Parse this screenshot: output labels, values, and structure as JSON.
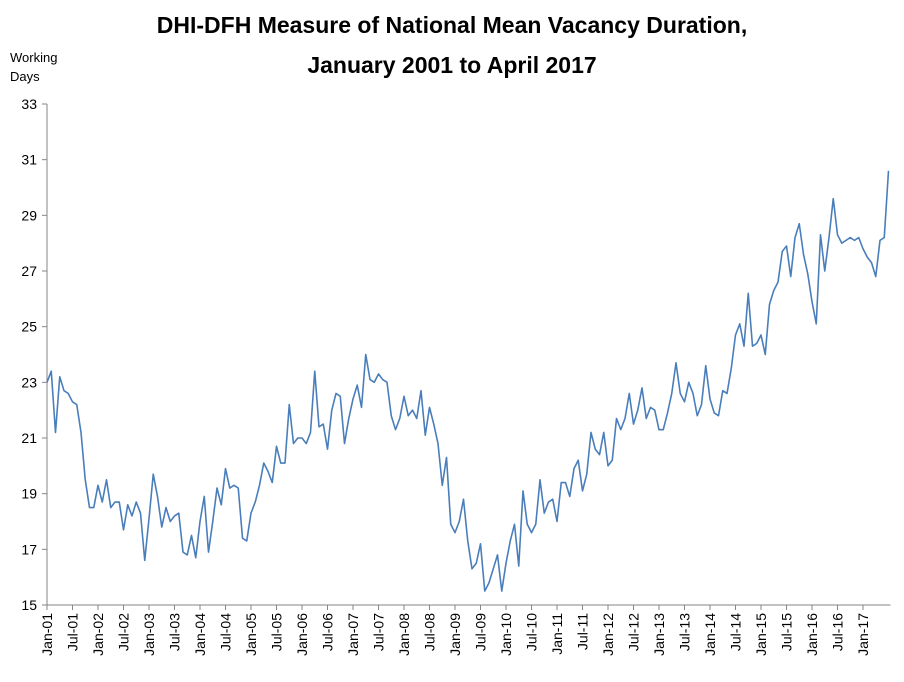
{
  "chart_data": {
    "type": "line",
    "title_lines": [
      "DHI-DFH Measure of National Mean Vacancy Duration,",
      "January 2001 to April 2017"
    ],
    "ylabel_lines": [
      "Working",
      "Days"
    ],
    "xlabel": "",
    "ylim": [
      15,
      33
    ],
    "yticks": [
      15,
      17,
      19,
      21,
      23,
      25,
      27,
      29,
      31,
      33
    ],
    "xtick_labels": [
      "Jan-01",
      "Jul-01",
      "Jan-02",
      "Jul-02",
      "Jan-03",
      "Jul-03",
      "Jan-04",
      "Jul-04",
      "Jan-05",
      "Jul-05",
      "Jan-06",
      "Jul-06",
      "Jan-07",
      "Jul-07",
      "Jan-08",
      "Jul-08",
      "Jan-09",
      "Jul-09",
      "Jan-10",
      "Jul-10",
      "Jan-11",
      "Jul-11",
      "Jan-12",
      "Jul-12",
      "Jan-13",
      "Jul-13",
      "Jan-14",
      "Jul-14",
      "Jan-15",
      "Jul-15",
      "Jan-16",
      "Jul-16",
      "Jan-17"
    ],
    "x_start": "Jan-01",
    "x_end": "Apr-17",
    "grid": false,
    "line_color": "#4a7ebb",
    "series": [
      {
        "values": [
          23.0,
          23.4,
          21.2,
          23.2,
          22.7,
          22.6,
          22.3,
          22.2,
          21.2,
          19.5,
          18.5,
          18.5,
          19.3,
          18.7,
          19.5,
          18.5,
          18.7,
          18.7,
          17.7,
          18.6,
          18.2,
          18.7,
          18.3,
          16.6,
          18.1,
          19.7,
          18.9,
          17.8,
          18.5,
          18.0,
          18.2,
          18.3,
          16.9,
          16.8,
          17.5,
          16.7,
          18.0,
          18.9,
          16.9,
          18.0,
          19.2,
          18.6,
          19.9,
          19.2,
          19.3,
          19.2,
          17.4,
          17.3,
          18.3,
          18.7,
          19.3,
          20.1,
          19.8,
          19.4,
          20.7,
          20.1,
          20.1,
          22.2,
          20.8,
          21.0,
          21.0,
          20.8,
          21.2,
          23.4,
          21.4,
          21.5,
          20.6,
          22.0,
          22.6,
          22.5,
          20.8,
          21.7,
          22.4,
          22.9,
          22.1,
          24.0,
          23.1,
          23.0,
          23.3,
          23.1,
          23.0,
          21.8,
          21.3,
          21.7,
          22.5,
          21.8,
          22.0,
          21.7,
          22.7,
          21.1,
          22.1,
          21.5,
          20.8,
          19.3,
          20.3,
          17.9,
          17.6,
          18.0,
          18.8,
          17.3,
          16.3,
          16.5,
          17.2,
          15.5,
          15.8,
          16.3,
          16.8,
          15.5,
          16.5,
          17.3,
          17.9,
          16.4,
          19.1,
          17.9,
          17.6,
          17.9,
          19.5,
          18.3,
          18.7,
          18.8,
          18.0,
          19.4,
          19.4,
          18.9,
          19.9,
          20.2,
          19.1,
          19.7,
          21.2,
          20.6,
          20.4,
          21.2,
          20.0,
          20.2,
          21.7,
          21.3,
          21.7,
          22.6,
          21.5,
          22.0,
          22.8,
          21.7,
          22.1,
          22.0,
          21.3,
          21.3,
          21.9,
          22.6,
          23.7,
          22.6,
          22.3,
          23.0,
          22.6,
          21.8,
          22.2,
          23.6,
          22.4,
          21.9,
          21.8,
          22.7,
          22.6,
          23.5,
          24.7,
          25.1,
          24.3,
          26.2,
          24.3,
          24.4,
          24.7,
          24.0,
          25.8,
          26.3,
          26.6,
          27.7,
          27.9,
          26.8,
          28.2,
          28.7,
          27.6,
          26.9,
          25.9,
          25.1,
          28.3,
          27.0,
          28.2,
          29.6,
          28.3,
          28.0,
          28.1,
          28.2,
          28.1,
          28.2,
          27.8,
          27.5,
          27.3,
          26.8,
          28.1,
          28.2,
          30.6
        ]
      }
    ]
  }
}
